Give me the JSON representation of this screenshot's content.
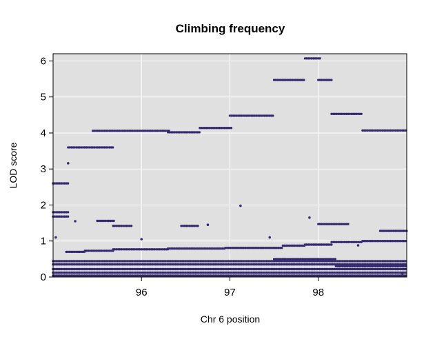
{
  "chart_data": {
    "type": "scatter",
    "title": "Climbing frequency",
    "xlabel": "Chr 6 position",
    "ylabel": "LOD score",
    "xlim": [
      95.0,
      99.0
    ],
    "ylim": [
      0,
      6.2
    ],
    "x_ticks": [
      96,
      97,
      98
    ],
    "x_tick_labels": [
      "96",
      "97",
      "98"
    ],
    "y_ticks": [
      0,
      1,
      2,
      3,
      4,
      5,
      6
    ],
    "y_tick_labels": [
      "0",
      "1",
      "2",
      "3",
      "4",
      "5",
      "6"
    ],
    "grid": true,
    "legend": "none",
    "colors": {
      "points": "#362a6e",
      "panel": "#e0e0e0",
      "grid": "#ffffff"
    },
    "top_lod_segments": [
      {
        "x0": 95.0,
        "x1": 95.17,
        "y": 2.6
      },
      {
        "x0": 95.17,
        "x1": 95.68,
        "y": 3.6
      },
      {
        "x0": 95.45,
        "x1": 96.32,
        "y": 4.06
      },
      {
        "x0": 96.3,
        "x1": 96.66,
        "y": 4.02
      },
      {
        "x0": 96.66,
        "x1": 97.02,
        "y": 4.14
      },
      {
        "x0": 97.0,
        "x1": 97.5,
        "y": 4.48
      },
      {
        "x0": 97.5,
        "x1": 97.85,
        "y": 5.47
      },
      {
        "x0": 97.85,
        "x1": 98.03,
        "y": 6.07
      },
      {
        "x0": 98.0,
        "x1": 98.15,
        "y": 5.47
      },
      {
        "x0": 98.15,
        "x1": 98.5,
        "y": 4.53
      },
      {
        "x0": 98.5,
        "x1": 99.0,
        "y": 4.07
      }
    ],
    "other_segments": [
      {
        "x0": 95.0,
        "x1": 95.17,
        "y": 1.8
      },
      {
        "x0": 95.0,
        "x1": 95.17,
        "y": 1.68
      },
      {
        "x0": 95.15,
        "x1": 95.36,
        "y": 0.7
      },
      {
        "x0": 95.36,
        "x1": 95.68,
        "y": 0.73
      },
      {
        "x0": 95.5,
        "x1": 95.7,
        "y": 1.56
      },
      {
        "x0": 95.68,
        "x1": 96.3,
        "y": 0.77
      },
      {
        "x0": 95.68,
        "x1": 95.9,
        "y": 1.42
      },
      {
        "x0": 96.3,
        "x1": 96.95,
        "y": 0.79
      },
      {
        "x0": 96.45,
        "x1": 96.65,
        "y": 1.42
      },
      {
        "x0": 96.95,
        "x1": 97.6,
        "y": 0.81
      },
      {
        "x0": 97.6,
        "x1": 97.85,
        "y": 0.87
      },
      {
        "x0": 97.85,
        "x1": 98.15,
        "y": 0.9
      },
      {
        "x0": 98.0,
        "x1": 98.35,
        "y": 1.47
      },
      {
        "x0": 98.15,
        "x1": 98.5,
        "y": 0.97
      },
      {
        "x0": 98.5,
        "x1": 99.0,
        "y": 1.0
      },
      {
        "x0": 98.7,
        "x1": 99.0,
        "y": 1.28
      },
      {
        "x0": 95.0,
        "x1": 99.0,
        "y": 0.44
      },
      {
        "x0": 95.0,
        "x1": 99.0,
        "y": 0.35
      },
      {
        "x0": 95.0,
        "x1": 99.0,
        "y": 0.22
      },
      {
        "x0": 95.0,
        "x1": 99.0,
        "y": 0.12
      },
      {
        "x0": 95.0,
        "x1": 99.0,
        "y": 0.04
      },
      {
        "x0": 97.5,
        "x1": 98.2,
        "y": 0.5
      },
      {
        "x0": 98.2,
        "x1": 99.0,
        "y": 0.3
      }
    ],
    "isolated_points": [
      {
        "x": 95.17,
        "y": 3.16
      },
      {
        "x": 97.12,
        "y": 1.98
      },
      {
        "x": 95.03,
        "y": 1.1
      },
      {
        "x": 95.25,
        "y": 1.55
      },
      {
        "x": 96.0,
        "y": 1.05
      },
      {
        "x": 96.75,
        "y": 1.45
      },
      {
        "x": 97.45,
        "y": 1.1
      },
      {
        "x": 97.9,
        "y": 1.65
      },
      {
        "x": 98.45,
        "y": 0.88
      },
      {
        "x": 98.95,
        "y": 0.1
      }
    ]
  }
}
